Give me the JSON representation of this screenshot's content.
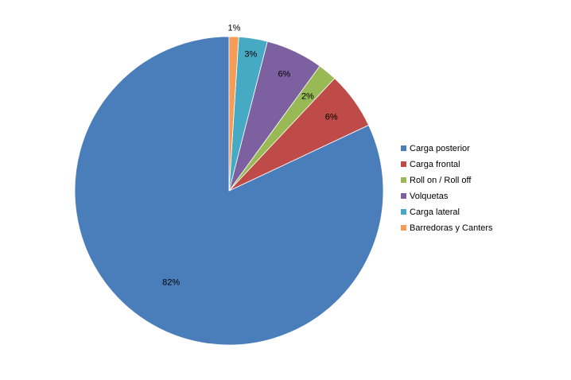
{
  "chart_data": {
    "type": "pie",
    "categories": [
      "Carga posterior",
      "Carga frontal",
      "Roll on / Roll off",
      "Volquetas",
      "Carga lateral",
      "Barredoras y Canters"
    ],
    "values": [
      82,
      6,
      2,
      6,
      3,
      1
    ],
    "value_labels": [
      "82%",
      "6%",
      "2%",
      "6%",
      "3%",
      "1%"
    ],
    "colors": [
      "#4a7ebb",
      "#be4b48",
      "#98b954",
      "#7d60a0",
      "#46aac5",
      "#f59d56"
    ],
    "legend_position": "right",
    "start_angle": "top",
    "direction": "counterclockwise"
  }
}
